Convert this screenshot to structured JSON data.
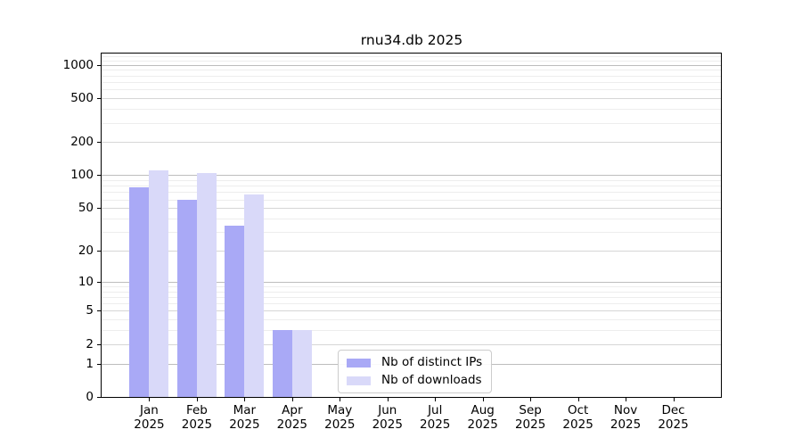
{
  "colors": {
    "bar_distinct_ips": "#a9a9f6",
    "bar_downloads": "#d9d9f9",
    "grid_decade": "#bdbdbd",
    "grid_major": "#d6d6d6",
    "grid_minor": "#ededed",
    "spine": "#000000",
    "legend_border": "#cccccc"
  },
  "chart_data": {
    "type": "bar",
    "title": "rnu34.db 2025",
    "categories": [
      "Jan",
      "Feb",
      "Mar",
      "Apr",
      "May",
      "Jun",
      "Jul",
      "Aug",
      "Sep",
      "Oct",
      "Nov",
      "Dec"
    ],
    "category_year": "2025",
    "series": [
      {
        "name": "Nb of distinct IPs",
        "color": "#a9a9f6",
        "values": [
          78,
          60,
          34,
          3,
          0,
          0,
          0,
          0,
          0,
          0,
          0,
          0
        ]
      },
      {
        "name": "Nb of downloads",
        "color": "#d9d9f9",
        "values": [
          111,
          104,
          67,
          3,
          0,
          0,
          0,
          0,
          0,
          0,
          0,
          0
        ]
      }
    ],
    "yscale": "log10(1+v)",
    "ylim": [
      0,
      1290
    ],
    "y_tick_labels": [
      1000,
      500,
      200,
      100,
      50,
      20,
      10,
      5,
      2,
      1,
      0
    ],
    "y_decade_gridlines": [
      1000,
      100,
      10,
      1
    ],
    "y_major_gridlines": [
      500,
      200,
      50,
      20,
      5,
      2
    ],
    "y_minor_gridlines": [
      1200,
      1100,
      900,
      800,
      700,
      600,
      400,
      300,
      90,
      80,
      70,
      60,
      40,
      30,
      9,
      8,
      7,
      6,
      4,
      3
    ],
    "grid": true,
    "legend_position": "inside-bottom-center"
  }
}
